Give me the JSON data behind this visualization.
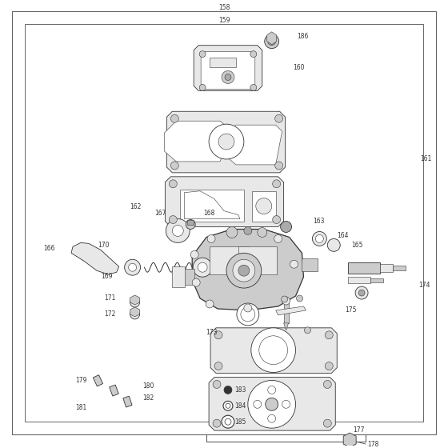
{
  "bg_color": "#ffffff",
  "border_color": "#666666",
  "line_color": "#333333",
  "label_color": "#333333",
  "lw_thick": 0.9,
  "lw_med": 0.6,
  "lw_thin": 0.4,
  "fs": 5.5
}
